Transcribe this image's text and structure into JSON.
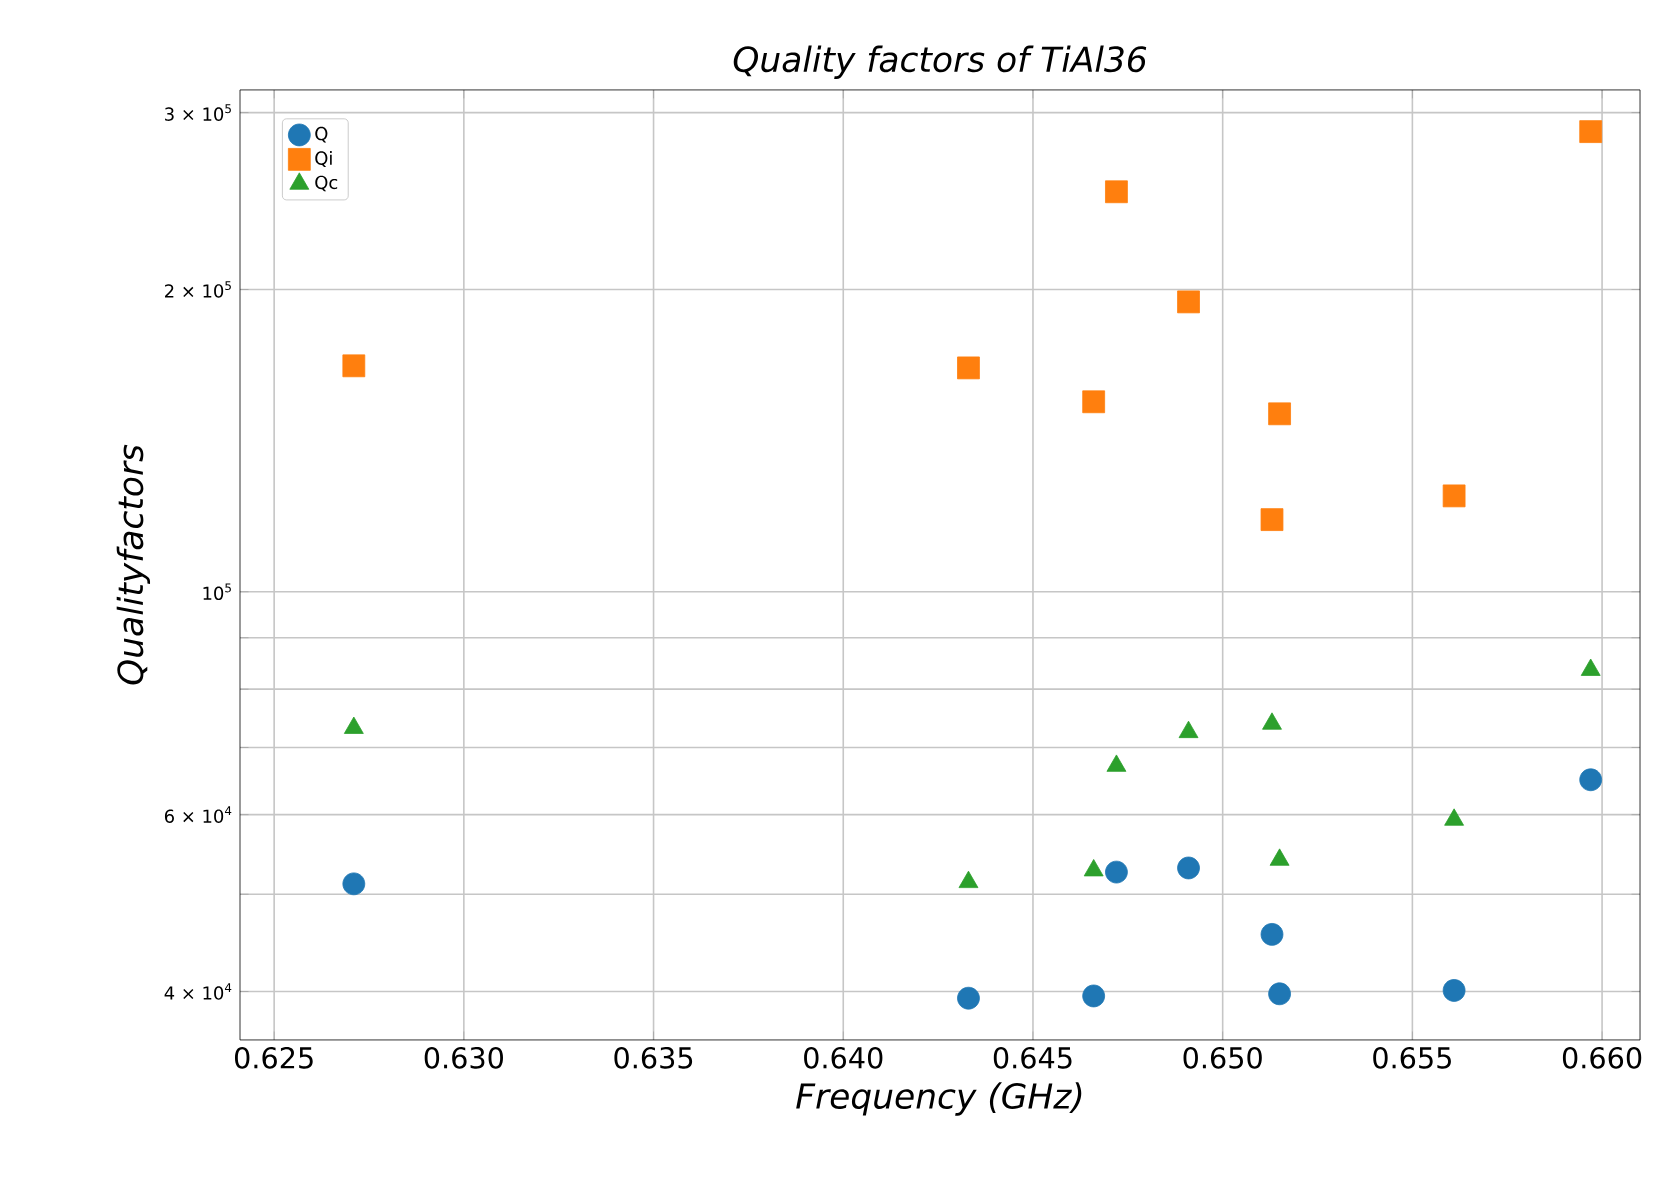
{
  "chart_data": {
    "type": "scatter",
    "title": "Quality factors of TiAl36",
    "xlabel": "Frequency (GHz)",
    "ylabel": "Qualityfactors",
    "x": [
      0.6271,
      0.6433,
      0.6466,
      0.6472,
      0.6491,
      0.6513,
      0.6515,
      0.6561,
      0.6597
    ],
    "series": [
      {
        "name": "Q",
        "color": "#1f77b4",
        "marker": "circle",
        "values": [
          51200,
          39400,
          39600,
          52600,
          53100,
          45600,
          39800,
          40100,
          65000
        ]
      },
      {
        "name": "Qi",
        "color": "#ff7f0e",
        "marker": "square",
        "values": [
          167900,
          167100,
          154600,
          250200,
          194400,
          118000,
          150400,
          124600,
          287200
        ]
      },
      {
        "name": "Qc",
        "color": "#2ca02c",
        "marker": "triangle",
        "values": [
          73200,
          51400,
          52800,
          67100,
          72500,
          73900,
          54100,
          59300,
          83600
        ]
      }
    ],
    "log": "y",
    "grid": true,
    "legend": "top left",
    "xlim": [
      0.6241,
      0.661
    ],
    "ylim": [
      35800,
      316000
    ],
    "xticks": [
      {
        "value": 0.625,
        "label": "0.625"
      },
      {
        "value": 0.63,
        "label": "0.630"
      },
      {
        "value": 0.635,
        "label": "0.635"
      },
      {
        "value": 0.64,
        "label": "0.640"
      },
      {
        "value": 0.645,
        "label": "0.645"
      },
      {
        "value": 0.65,
        "label": "0.650"
      },
      {
        "value": 0.655,
        "label": "0.655"
      },
      {
        "value": 0.66,
        "label": "0.660"
      }
    ],
    "yticks": [
      {
        "value": 40000,
        "label": "4 × 10$^{4}$"
      },
      {
        "value": 50000,
        "label": null
      },
      {
        "value": 60000,
        "label": "6 × 10$^{4}$"
      },
      {
        "value": 70000,
        "label": null
      },
      {
        "value": 80000,
        "label": null
      },
      {
        "value": 90000,
        "label": null
      },
      {
        "value": 100000,
        "label": "10$^{5}$"
      },
      {
        "value": 200000,
        "label": "2 × 10$^{5}$"
      },
      {
        "value": 300000,
        "label": "3 × 10$^{5}$"
      }
    ]
  }
}
